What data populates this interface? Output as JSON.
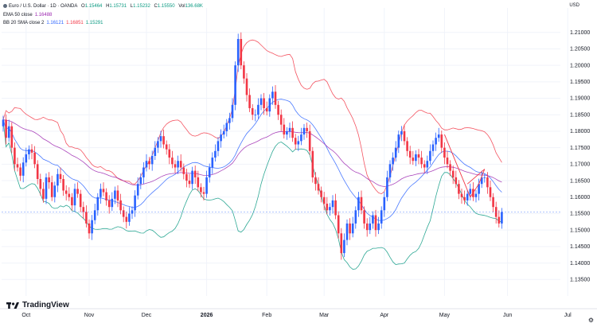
{
  "header": {
    "symbol": "Euro / U.S. Dollar · 1D · OANDA",
    "ohlc": [
      {
        "k": "O",
        "v": "1.15464"
      },
      {
        "k": "H",
        "v": "1.15731"
      },
      {
        "k": "L",
        "v": "1.15232"
      },
      {
        "k": "C",
        "v": "1.15550"
      },
      {
        "k": "Vol",
        "v": "136.68K"
      }
    ],
    "currency": "USD"
  },
  "indicators": {
    "ema_label": "EMA 50 close",
    "ema_value": "1.16488",
    "bb_label": "BB 20 SMA close 2",
    "bb_basis": "1.16121",
    "bb_upper": "1.16851",
    "bb_lower": "1.15291"
  },
  "brand": "TradingView",
  "colors": {
    "up": "#2962ff",
    "down": "#f23645",
    "ema": "#9c27b0",
    "bb_basis": "#2962ff",
    "bb_upper": "#f23645",
    "bb_lower": "#089981",
    "grid": "#f0f3fa",
    "last_price_line": "#2962ff"
  },
  "chart_data": {
    "type": "candlestick",
    "yaxis": {
      "range": [
        1.13,
        1.215
      ],
      "ticks": [
        "1.21000",
        "1.20500",
        "1.20000",
        "1.19500",
        "1.19000",
        "1.18500",
        "1.18000",
        "1.17500",
        "1.17000",
        "1.16500",
        "1.16000",
        "1.15500",
        "1.15000",
        "1.14500",
        "1.14000",
        "1.13500"
      ],
      "tick_values": [
        1.21,
        1.205,
        1.2,
        1.195,
        1.19,
        1.185,
        1.18,
        1.175,
        1.17,
        1.165,
        1.16,
        1.155,
        1.15,
        1.145,
        1.14,
        1.135
      ]
    },
    "xaxis": {
      "labels": [
        {
          "text": "Oct",
          "i": 8,
          "bold": false
        },
        {
          "text": "Nov",
          "i": 30,
          "bold": false
        },
        {
          "text": "Dec",
          "i": 50,
          "bold": false
        },
        {
          "text": "2026",
          "i": 71,
          "bold": true
        },
        {
          "text": "Feb",
          "i": 92,
          "bold": false
        },
        {
          "text": "Mar",
          "i": 112,
          "bold": false
        },
        {
          "text": "Apr",
          "i": 133,
          "bold": false
        },
        {
          "text": "May",
          "i": 154,
          "bold": false
        },
        {
          "text": "Jun",
          "i": 176,
          "bold": false
        },
        {
          "text": "Jul",
          "i": 197,
          "bold": false
        }
      ]
    },
    "last_price": 1.1555,
    "closes": [
      1.1835,
      1.178,
      1.1815,
      1.175,
      1.17,
      1.169,
      1.1665,
      1.1705,
      1.173,
      1.1745,
      1.1735,
      1.17,
      1.1655,
      1.1625,
      1.1595,
      1.166,
      1.1645,
      1.16,
      1.1635,
      1.167,
      1.1655,
      1.162,
      1.161,
      1.16,
      1.1575,
      1.1625,
      1.161,
      1.157,
      1.1555,
      1.152,
      1.149,
      1.153,
      1.156,
      1.16,
      1.1625,
      1.1615,
      1.159,
      1.157,
      1.1595,
      1.162,
      1.159,
      1.156,
      1.154,
      1.1525,
      1.155,
      1.156,
      1.1605,
      1.164,
      1.166,
      1.169,
      1.171,
      1.17,
      1.1725,
      1.175,
      1.177,
      1.1785,
      1.176,
      1.1745,
      1.172,
      1.17,
      1.169,
      1.171,
      1.169,
      1.167,
      1.165,
      1.164,
      1.168,
      1.166,
      1.163,
      1.1615,
      1.161,
      1.166,
      1.169,
      1.172,
      1.174,
      1.177,
      1.179,
      1.18,
      1.1825,
      1.184,
      1.188,
      1.2,
      1.208,
      1.2,
      1.196,
      1.191,
      1.187,
      1.185,
      1.185,
      1.188,
      1.19,
      1.187,
      1.186,
      1.19,
      1.192,
      1.188,
      1.185,
      1.182,
      1.179,
      1.18,
      1.181,
      1.178,
      1.176,
      1.177,
      1.179,
      1.181,
      1.18,
      1.174,
      1.166,
      1.164,
      1.162,
      1.16,
      1.158,
      1.156,
      1.157,
      1.159,
      1.1545,
      1.149,
      1.143,
      1.147,
      1.152,
      1.149,
      1.152,
      1.156,
      1.16,
      1.156,
      1.152,
      1.15,
      1.152,
      1.1545,
      1.15,
      1.152,
      1.156,
      1.16,
      1.166,
      1.17,
      1.172,
      1.175,
      1.179,
      1.18,
      1.177,
      1.174,
      1.172,
      1.171,
      1.173,
      1.172,
      1.17,
      1.169,
      1.171,
      1.174,
      1.176,
      1.178,
      1.179,
      1.175,
      1.172,
      1.17,
      1.168,
      1.166,
      1.164,
      1.161,
      1.16,
      1.159,
      1.161,
      1.1625,
      1.16,
      1.161,
      1.164,
      1.166,
      1.166,
      1.163,
      1.16,
      1.157,
      1.154,
      1.152,
      1.1555
    ]
  }
}
